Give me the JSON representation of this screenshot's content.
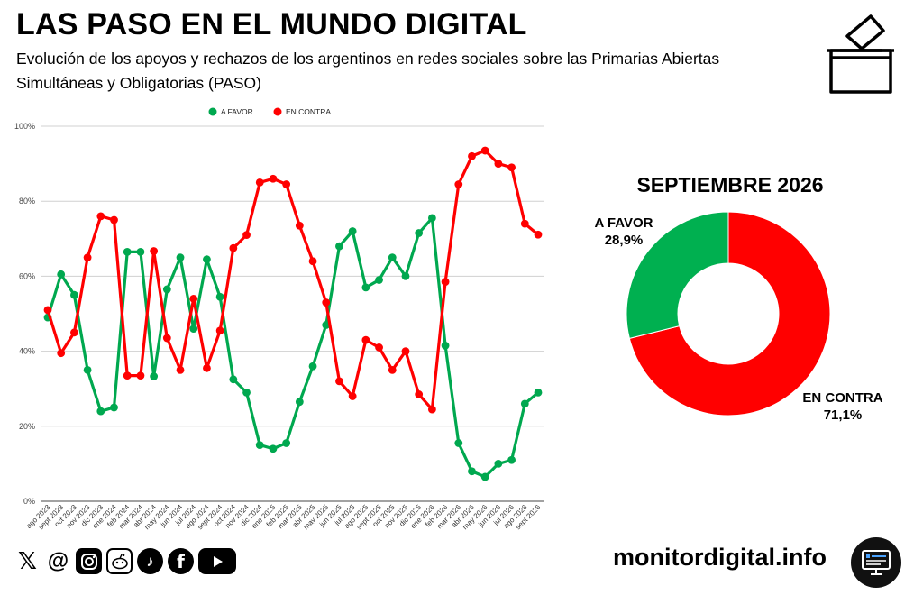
{
  "header": {
    "title": "LAS PASO EN EL MUNDO DIGITAL",
    "subtitle": "Evolución de los apoyos y rechazos de los argentinos en redes sociales sobre las Primarias Abiertas Simultáneas y Obligatorias (PASO)"
  },
  "chart_data": [
    {
      "type": "line",
      "categories": [
        "ago 2023",
        "sept 2023",
        "oct 2023",
        "nov 2023",
        "dic 2023",
        "ene 2024",
        "feb 2024",
        "mar 2024",
        "abr 2024",
        "may 2024",
        "jun 2024",
        "jul 2024",
        "ago 2024",
        "sept 2024",
        "oct 2024",
        "nov 2024",
        "dic 2024",
        "ene 2025",
        "feb 2025",
        "mar 2025",
        "abr 2025",
        "may 2025",
        "jun 2025",
        "jul 2025",
        "ago 2025",
        "sept 2025",
        "oct 2025",
        "nov 2025",
        "dic 2025",
        "ene 2026",
        "feb 2026",
        "mar 2026",
        "abr 2026",
        "may 2026",
        "jun 2026",
        "jul 2026",
        "ago 2026",
        "sept 2026"
      ],
      "series": [
        {
          "name": "A FAVOR",
          "color": "#00a84f",
          "values": [
            49,
            60.5,
            55,
            35,
            24,
            25,
            66.5,
            66.5,
            33.3,
            56.5,
            65,
            46,
            64.5,
            54.5,
            32.5,
            29,
            15,
            14,
            15.5,
            26.5,
            36,
            47,
            68,
            72,
            57,
            59,
            65,
            60,
            71.5,
            75.5,
            41.5,
            15.5,
            8,
            6.5,
            10,
            11,
            26,
            29
          ]
        },
        {
          "name": "EN CONTRA",
          "color": "#ff0000",
          "values": [
            51,
            39.5,
            45,
            65,
            76,
            75,
            33.5,
            33.5,
            66.7,
            43.5,
            35,
            54,
            35.5,
            45.5,
            67.5,
            71,
            85,
            86,
            84.5,
            73.5,
            64,
            53,
            32,
            28,
            43,
            41,
            35,
            40,
            28.5,
            24.5,
            58.5,
            84.5,
            92,
            93.5,
            90,
            89,
            74,
            71.1
          ]
        }
      ],
      "yticks": [
        "0%",
        "20%",
        "40%",
        "60%",
        "80%",
        "100%"
      ],
      "ylim": [
        0,
        100
      ],
      "grid": true,
      "legend": "top-center"
    },
    {
      "type": "pie",
      "title": "SEPTIEMBRE 2026",
      "labels": [
        "A FAVOR",
        "EN CONTRA"
      ],
      "values": [
        28.9,
        71.1
      ],
      "value_labels": [
        "28,9%",
        "71,1%"
      ],
      "colors": [
        "#00b050",
        "#ff0000"
      ],
      "donut": true
    }
  ],
  "footer": {
    "social_icons": [
      "x-icon",
      "threads-icon",
      "instagram-icon",
      "reddit-icon",
      "tiktok-icon",
      "facebook-icon",
      "youtube-icon"
    ],
    "site": "monitordigital.info"
  }
}
